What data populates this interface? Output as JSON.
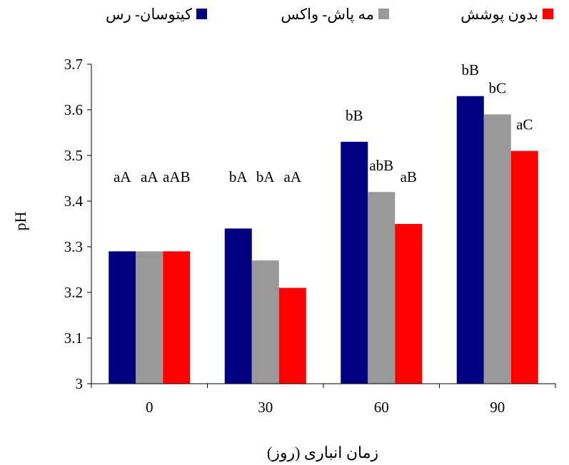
{
  "chart_data": {
    "type": "bar",
    "title": "",
    "xlabel": "زمان انباری (روز)",
    "ylabel": "pH",
    "categories": [
      "0",
      "30",
      "60",
      "90"
    ],
    "ylim": [
      3,
      3.7
    ],
    "yticks": [
      "3",
      "3.1",
      "3.2",
      "3.3",
      "3.4",
      "3.5",
      "3.6",
      "3.7"
    ],
    "grid": false,
    "legend_position": "top",
    "series": [
      {
        "name": "کیتوسان- رس",
        "color": "#000080",
        "values": [
          3.29,
          3.34,
          3.53,
          3.63
        ],
        "labels": [
          "aA",
          "bA",
          "bB",
          "bB"
        ]
      },
      {
        "name": "مه پاش- واکس",
        "color": "#999999",
        "values": [
          3.29,
          3.27,
          3.42,
          3.59
        ],
        "labels": [
          "aA",
          "bA",
          "abB",
          "bC"
        ]
      },
      {
        "name": "بدون پوشش",
        "color": "#ff0000",
        "values": [
          3.29,
          3.21,
          3.35,
          3.51
        ],
        "labels": [
          "aAB",
          "aA",
          "aB",
          "aC"
        ]
      }
    ]
  }
}
